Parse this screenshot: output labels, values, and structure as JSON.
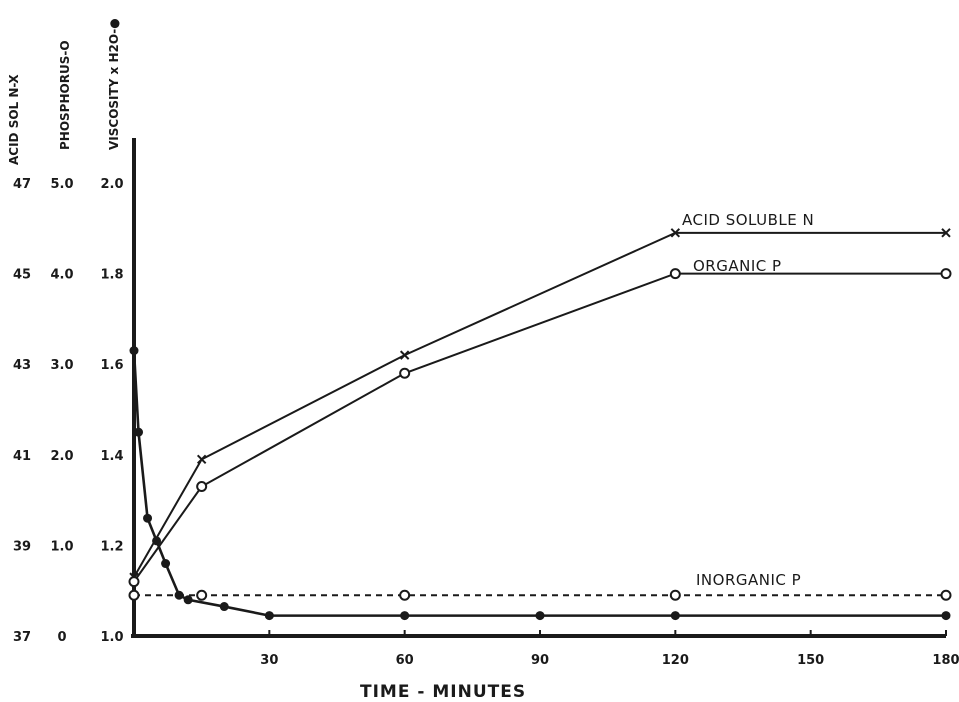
{
  "chart_data": {
    "type": "line",
    "xlabel": "TIME - MINUTES",
    "x_ticks": [
      "30",
      "60",
      "90",
      "120",
      "150",
      "180"
    ],
    "xlim": [
      0,
      180
    ],
    "y_axes": [
      {
        "label": "ACID SOL N-X",
        "ticks": [
          "47",
          "45",
          "43",
          "41",
          "39",
          "37"
        ],
        "ylim": [
          37,
          47
        ]
      },
      {
        "label": "PHOSPHORUS-O",
        "ticks": [
          "5.0",
          "4.0",
          "3.0",
          "2.0",
          "1.0",
          "0"
        ],
        "ylim": [
          0,
          5
        ]
      },
      {
        "label": "VISCOSITY x H2O-●",
        "ticks": [
          "2.0",
          "1.8",
          "1.6",
          "1.4",
          "1.2",
          "1.0"
        ],
        "ylim": [
          1.0,
          2.0
        ]
      }
    ],
    "series": [
      {
        "name": "ACID SOLUBLE N",
        "marker": "x",
        "axis": "ACID SOL N",
        "x": [
          0,
          15,
          60,
          120,
          180
        ],
        "y": [
          38.3,
          40.9,
          43.2,
          45.9,
          45.9
        ]
      },
      {
        "name": "ORGANIC P",
        "marker": "open-circle",
        "axis": "PHOSPHORUS",
        "x": [
          0,
          15,
          60,
          120,
          180
        ],
        "y": [
          0.6,
          1.65,
          2.9,
          4.0,
          4.0
        ]
      },
      {
        "name": "INORGANIC P",
        "marker": "open-circle",
        "dashed": true,
        "axis": "PHOSPHORUS",
        "x": [
          0,
          15,
          60,
          120,
          180
        ],
        "y": [
          0.45,
          0.45,
          0.45,
          0.45,
          0.45
        ]
      },
      {
        "name": "",
        "marker": "filled-circle",
        "axis": "VISCOSITY",
        "x": [
          0,
          1,
          3,
          5,
          7,
          10,
          12,
          20,
          30,
          60,
          90,
          120,
          180
        ],
        "y": [
          1.63,
          1.45,
          1.26,
          1.21,
          1.16,
          1.09,
          1.08,
          1.065,
          1.045,
          1.045,
          1.045,
          1.045,
          1.045
        ]
      }
    ],
    "colors": {
      "ink": "#1a1a1a",
      "background": "#ffffff"
    }
  }
}
